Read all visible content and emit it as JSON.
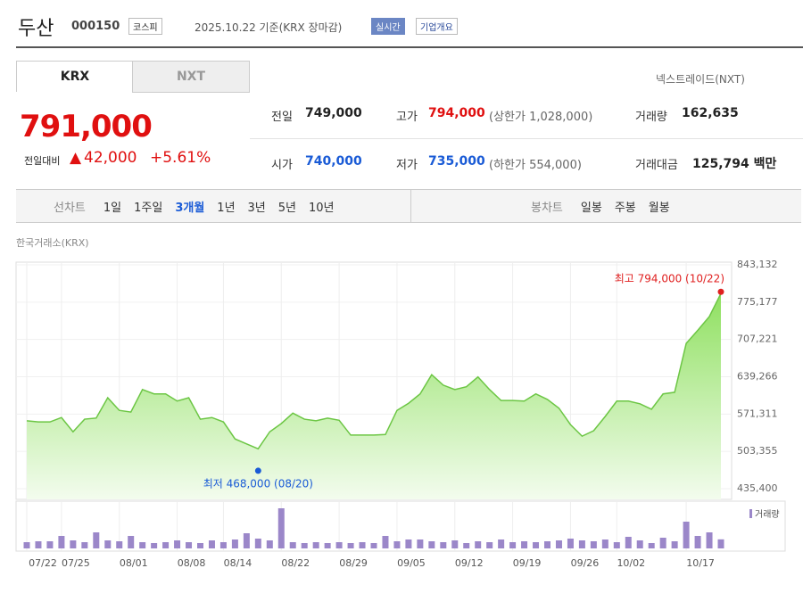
{
  "header": {
    "name": "두산",
    "code": "000150",
    "market": "코스피",
    "date": "2025.10.22 기준(KRX 장마감)",
    "realtime": "실시간",
    "overview": "기업개요"
  },
  "tabs": [
    "KRX",
    "NXT"
  ],
  "nxt_link": "넥스트레이드(NXT)",
  "quote": {
    "price": "791,000",
    "change_label": "전일대비",
    "change": "42,000",
    "rate": "+5.61%"
  },
  "stats": [
    {
      "label": "전일",
      "value": "749,000"
    },
    {
      "label": "고가",
      "value": "794,000",
      "extra": "(상한가 1,028,000)"
    },
    {
      "label": "거래량",
      "value": "162,635"
    },
    {
      "label": "시가",
      "value": "740,000"
    },
    {
      "label": "저가",
      "value": "735,000",
      "extra": "(하한가 554,000)"
    },
    {
      "label": "거래대금",
      "value": "125,794 백만"
    }
  ],
  "periods": {
    "label": "선차트",
    "options": [
      "1일",
      "1주일",
      "3개월",
      "1년",
      "3년",
      "5년",
      "10년"
    ],
    "active": 2
  },
  "candles": {
    "label": "봉차트",
    "options": [
      "일봉",
      "주봉",
      "월봉"
    ]
  },
  "chart_data": {
    "type": "line",
    "source": "한국거래소(KRX)",
    "categories": [
      "07/22",
      null,
      null,
      "07/25",
      null,
      null,
      null,
      null,
      "08/01",
      null,
      null,
      null,
      null,
      "08/08",
      null,
      null,
      null,
      "08/14",
      null,
      null,
      null,
      null,
      "08/22",
      null,
      null,
      null,
      null,
      "08/29",
      null,
      null,
      null,
      null,
      "09/05",
      null,
      null,
      null,
      null,
      "09/12",
      null,
      null,
      null,
      null,
      "09/19",
      null,
      null,
      null,
      null,
      "09/26",
      null,
      null,
      null,
      "10/02",
      null,
      null,
      null,
      null,
      null,
      "10/17",
      null,
      null,
      null
    ],
    "values": [
      559000,
      557000,
      557000,
      565000,
      539000,
      562000,
      564000,
      601000,
      578000,
      575000,
      616000,
      608000,
      608000,
      595000,
      601000,
      562000,
      565000,
      557000,
      526000,
      517000,
      508000,
      539000,
      554000,
      573000,
      562000,
      559000,
      564000,
      560000,
      533000,
      533000,
      533000,
      534000,
      578000,
      591000,
      608000,
      643000,
      624000,
      616000,
      621000,
      639000,
      616000,
      596000,
      596000,
      595000,
      608000,
      598000,
      582000,
      552000,
      531000,
      541000,
      567000,
      595000,
      595000,
      590000,
      580000,
      608000,
      611000,
      700000,
      724000,
      749000,
      791000
    ],
    "color": "#6cc644",
    "ylim": [
      435400,
      843132
    ],
    "yticks": [
      {
        "value": 435400,
        "label": "435,400"
      },
      {
        "value": 503355,
        "label": "503,355"
      },
      {
        "value": 571311,
        "label": "571,311"
      },
      {
        "value": 639266,
        "label": "639,266"
      },
      {
        "value": 707221,
        "label": "707,221"
      },
      {
        "value": 775177,
        "label": "775,177"
      },
      {
        "value": 843132,
        "label": "843,132"
      }
    ],
    "annotations": [
      {
        "label": "최고 794,000 (10/22)",
        "index": 60,
        "value": 794000,
        "color": "#e02020"
      },
      {
        "label": "최저 468,000 (08/20)",
        "index": 20,
        "value": 468000,
        "color": "#1a5bd6"
      }
    ],
    "volume": {
      "name": "거래량",
      "color": "#9b87c9",
      "y2lim": [
        0,
        800000
      ],
      "values": [
        112000,
        128000,
        128000,
        224000,
        144000,
        112000,
        288000,
        144000,
        128000,
        224000,
        112000,
        96000,
        112000,
        144000,
        112000,
        96000,
        144000,
        112000,
        160000,
        272000,
        176000,
        144000,
        720000,
        112000,
        96000,
        112000,
        96000,
        112000,
        96000,
        112000,
        96000,
        224000,
        128000,
        160000,
        160000,
        128000,
        112000,
        144000,
        96000,
        128000,
        112000,
        160000,
        112000,
        128000,
        112000,
        128000,
        144000,
        176000,
        144000,
        128000,
        160000,
        112000,
        208000,
        144000,
        96000,
        192000,
        128000,
        480000,
        224000,
        288000,
        162635
      ]
    }
  }
}
